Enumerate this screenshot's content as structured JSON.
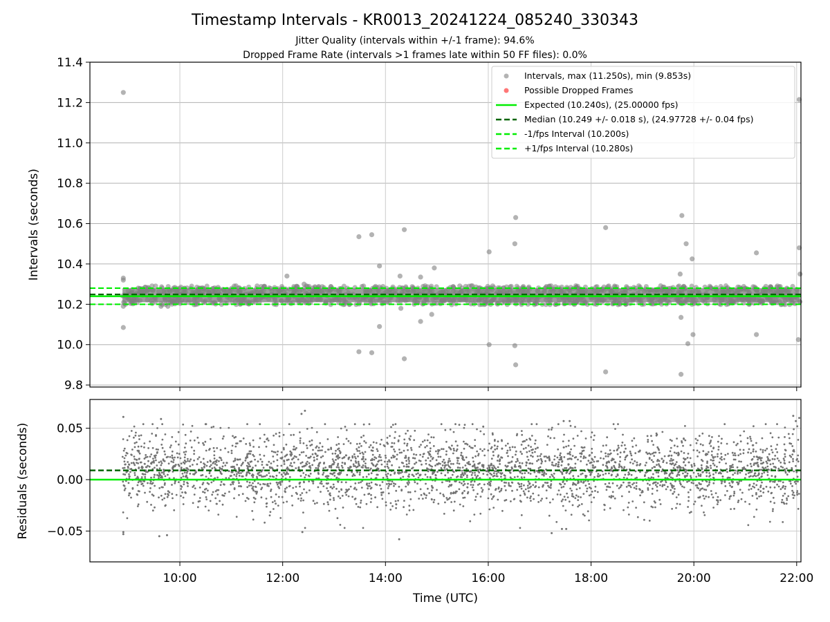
{
  "figure": {
    "title": "Timestamp Intervals - KR0013_20241224_085240_330343",
    "subtitle_1": "Jitter Quality (intervals within +/-1 frame): 94.6%",
    "subtitle_2": "Dropped Frame Rate (intervals >1 frames late within 50 FF files): 0.0%"
  },
  "chart_data": [
    {
      "type": "scatter",
      "panel": "intervals",
      "ylabel": "Intervals (seconds)",
      "ylim": [
        9.79,
        11.4
      ],
      "y_ticks": [
        "9.8",
        "10.0",
        "10.2",
        "10.4",
        "10.6",
        "10.8",
        "11.0",
        "11.2",
        "11.4"
      ],
      "grid": true,
      "legend_position": "top-right",
      "series": [
        {
          "name": "Intervals, max (11.250s), min (9.853s)",
          "color": "#808080",
          "band": {
            "center": 10.245,
            "half_width": 0.035,
            "x_start": "08:53",
            "x_end": "22:04"
          },
          "points": [
            [
              "08:54",
              11.25
            ],
            [
              "08:54",
              10.33
            ],
            [
              "08:54",
              10.32
            ],
            [
              "08:54",
              10.19
            ],
            [
              "08:54",
              10.085
            ],
            [
              "09:38",
              10.19
            ],
            [
              "09:46",
              10.19
            ],
            [
              "12:05",
              10.34
            ],
            [
              "12:25",
              10.3
            ],
            [
              "13:29",
              10.535
            ],
            [
              "13:44",
              10.545
            ],
            [
              "13:53",
              10.39
            ],
            [
              "14:17",
              10.34
            ],
            [
              "14:22",
              10.57
            ],
            [
              "14:41",
              10.335
            ],
            [
              "14:57",
              10.38
            ],
            [
              "14:18",
              10.18
            ],
            [
              "14:41",
              10.115
            ],
            [
              "14:54",
              10.15
            ],
            [
              "13:53",
              10.09
            ],
            [
              "13:29",
              9.965
            ],
            [
              "13:44",
              9.96
            ],
            [
              "14:22",
              9.93
            ],
            [
              "16:01",
              10.46
            ],
            [
              "16:31",
              10.5
            ],
            [
              "16:32",
              10.63
            ],
            [
              "16:01",
              10.0
            ],
            [
              "16:31",
              9.995
            ],
            [
              "16:32",
              9.9
            ],
            [
              "18:17",
              10.58
            ],
            [
              "18:17",
              9.865
            ],
            [
              "19:46",
              10.64
            ],
            [
              "19:51",
              10.5
            ],
            [
              "19:58",
              10.425
            ],
            [
              "19:44",
              10.35
            ],
            [
              "19:45",
              10.135
            ],
            [
              "19:53",
              10.005
            ],
            [
              "19:59",
              10.05
            ],
            [
              "19:45",
              9.853
            ],
            [
              "21:13",
              10.455
            ],
            [
              "21:13",
              10.05
            ],
            [
              "22:03",
              11.215
            ],
            [
              "22:03",
              10.48
            ],
            [
              "22:04",
              10.35
            ],
            [
              "22:02",
              10.025
            ]
          ]
        },
        {
          "name": "Possible Dropped Frames",
          "color": "#ff5555",
          "points": []
        }
      ],
      "lines": [
        {
          "name": "Expected (10.240s), (25.00000 fps)",
          "y": 10.24,
          "color": "#00ee00",
          "style": "solid"
        },
        {
          "name": "Median (10.249 +/- 0.018 s), (24.97728 +/- 0.04 fps)",
          "y": 10.249,
          "color": "#006400",
          "style": "dashed"
        },
        {
          "name": "-1/fps Interval (10.200s)",
          "y": 10.2,
          "color": "#00ee00",
          "style": "dashed"
        },
        {
          "name": "+1/fps Interval (10.280s)",
          "y": 10.28,
          "color": "#00ee00",
          "style": "dashed"
        }
      ]
    },
    {
      "type": "scatter",
      "panel": "residuals",
      "xlabel": "Time (UTC)",
      "ylabel": "Residuals (seconds)",
      "ylim": [
        -0.08,
        0.078
      ],
      "y_ticks": [
        "−0.05",
        "0.00",
        "0.05"
      ],
      "x_range": [
        "08:15",
        "22:05"
      ],
      "x_ticks": [
        "10:00",
        "12:00",
        "14:00",
        "16:00",
        "18:00",
        "20:00",
        "22:00"
      ],
      "grid": true,
      "series": [
        {
          "name": "",
          "color": "#737373",
          "cloud": {
            "x_start": "08:53",
            "x_end": "22:04",
            "mean": 0.009,
            "spread": 0.018
          },
          "points": [
            [
              "08:54",
              0.061
            ],
            [
              "08:54",
              -0.053
            ],
            [
              "08:54",
              -0.051
            ],
            [
              "09:36",
              -0.055
            ],
            [
              "09:45",
              -0.054
            ],
            [
              "09:38",
              0.059
            ],
            [
              "12:26",
              0.067
            ],
            [
              "12:22",
              0.064
            ],
            [
              "12:23",
              -0.051
            ],
            [
              "14:16",
              -0.058
            ],
            [
              "17:14",
              -0.052
            ],
            [
              "17:26",
              -0.048
            ],
            [
              "17:31",
              -0.048
            ],
            [
              "17:28",
              0.057
            ],
            [
              "17:35",
              0.057
            ],
            [
              "21:56",
              0.062
            ],
            [
              "21:59",
              0.057
            ],
            [
              "22:03",
              0.06
            ]
          ]
        }
      ],
      "lines": [
        {
          "name": "",
          "y": 0.0,
          "color": "#00ee00",
          "style": "solid"
        },
        {
          "name": "",
          "y": 0.009,
          "color": "#006400",
          "style": "dashed"
        }
      ]
    }
  ]
}
